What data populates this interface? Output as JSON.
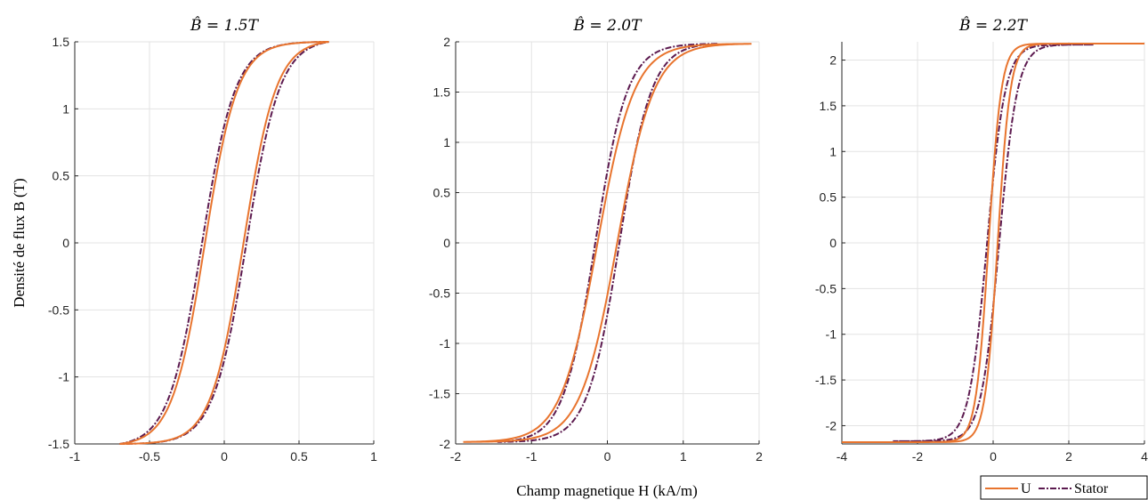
{
  "figure": {
    "ylabel": "Densité de flux B (T)",
    "xlabel": "Champ magnetique H (kA/m)",
    "legend": [
      {
        "label": "U",
        "color": "#E8742E",
        "dash": "solid"
      },
      {
        "label": "Stator",
        "color": "#5C1A4F",
        "dash": "dashdot"
      }
    ]
  },
  "chart_data": [
    {
      "type": "line",
      "title": "B̂ = 1.5T",
      "xlim": [
        -1,
        1
      ],
      "ylim": [
        -1.5,
        1.5
      ],
      "xticks": [
        -1,
        -0.5,
        0,
        0.5,
        1
      ],
      "xtick_labels": [
        "-1",
        "-0.5",
        "0",
        "0.5",
        "1"
      ],
      "yticks": [
        -1.5,
        -1,
        -0.5,
        0,
        0.5,
        1,
        1.5
      ],
      "ytick_labels": [
        "-1.5",
        "-1",
        "-0.5",
        "0",
        "0.5",
        "1",
        "1.5"
      ],
      "grid": true,
      "series": [
        {
          "name": "U",
          "color": "#E8742E",
          "style": "solid",
          "hmax": 0.7,
          "bmax": 1.5,
          "hc": 0.13,
          "b_at_zero": 0.48
        },
        {
          "name": "Stator",
          "color": "#5C1A4F",
          "style": "dashdot",
          "hmax": 0.7,
          "bmax": 1.5,
          "hc": 0.15,
          "b_at_zero": 0.42
        }
      ]
    },
    {
      "type": "line",
      "title": "B̂ = 2.0T",
      "xlim": [
        -2,
        2
      ],
      "ylim": [
        -2,
        2
      ],
      "xticks": [
        -2,
        -1,
        0,
        1,
        2
      ],
      "xtick_labels": [
        "-2",
        "-1",
        "0",
        "1",
        "2"
      ],
      "yticks": [
        -2,
        -1.5,
        -1,
        -0.5,
        0,
        0.5,
        1,
        1.5,
        2
      ],
      "ytick_labels": [
        "-2",
        "-1.5",
        "-1",
        "-0.5",
        "0",
        "0.5",
        "1",
        "1.5",
        "2"
      ],
      "grid": true,
      "series": [
        {
          "name": "U",
          "color": "#E8742E",
          "style": "solid",
          "hmax": 1.9,
          "bmax": 1.98,
          "hc": 0.13,
          "b_at_zero": 0.52
        },
        {
          "name": "Stator",
          "color": "#5C1A4F",
          "style": "dashdot",
          "hmax": 1.45,
          "bmax": 1.98,
          "hc": 0.16,
          "b_at_zero": 0.55
        }
      ]
    },
    {
      "type": "line",
      "title": "B̂ = 2.2T",
      "xlim": [
        -4,
        4
      ],
      "ylim": [
        -2.2,
        2.2
      ],
      "xticks": [
        -4,
        -2,
        0,
        2,
        4
      ],
      "xtick_labels": [
        "-4",
        "-2",
        "0",
        "2",
        "4"
      ],
      "yticks": [
        -2,
        -1.5,
        -1,
        -0.5,
        0,
        0.5,
        1,
        1.5,
        2
      ],
      "ytick_labels": [
        "-2",
        "-1.5",
        "-1",
        "-0.5",
        "0",
        "0.5",
        "1",
        "1.5",
        "2"
      ],
      "grid": true,
      "series": [
        {
          "name": "U",
          "color": "#E8742E",
          "style": "solid",
          "hmax": 4.0,
          "bmax": 2.18,
          "hc": 0.12,
          "b_at_zero": 0.75
        },
        {
          "name": "Stator",
          "color": "#5C1A4F",
          "style": "dashdot",
          "hmax": 2.65,
          "bmax": 2.17,
          "hc": 0.16,
          "b_at_zero": 0.7
        }
      ]
    }
  ]
}
